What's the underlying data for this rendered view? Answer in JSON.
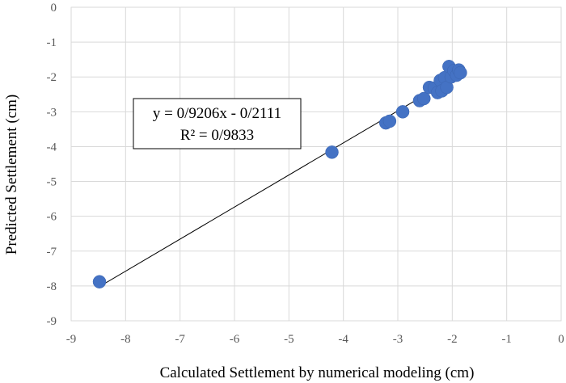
{
  "chart_data": {
    "type": "scatter",
    "title": "",
    "xlabel": "Calculated Settlement by numerical modeling (cm)",
    "ylabel": "Predicted Settlement (cm)",
    "xlim": [
      -9,
      0
    ],
    "ylim": [
      -9,
      0
    ],
    "x_ticks": [
      -9,
      -8,
      -7,
      -6,
      -5,
      -4,
      -3,
      -2,
      -1,
      0
    ],
    "y_ticks": [
      0,
      -1,
      -2,
      -3,
      -4,
      -5,
      -6,
      -7,
      -8,
      -9
    ],
    "x_tick_labels": [
      "-9",
      "-8",
      "-7",
      "-6",
      "-5",
      "-4",
      "-3",
      "-2",
      "-1",
      "0"
    ],
    "y_tick_labels": [
      "0",
      "-1",
      "-2",
      "-3",
      "-4",
      "-5",
      "-6",
      "-7",
      "-8",
      "-9"
    ],
    "grid": true,
    "legend": "none",
    "marker_color": "#4472c4",
    "points": [
      {
        "x": -8.48,
        "y": -7.88
      },
      {
        "x": -4.21,
        "y": -4.16
      },
      {
        "x": -3.22,
        "y": -3.32
      },
      {
        "x": -3.15,
        "y": -3.27
      },
      {
        "x": -2.91,
        "y": -3.0
      },
      {
        "x": -2.6,
        "y": -2.68
      },
      {
        "x": -2.52,
        "y": -2.62
      },
      {
        "x": -2.42,
        "y": -2.3
      },
      {
        "x": -2.33,
        "y": -2.32
      },
      {
        "x": -2.27,
        "y": -2.45
      },
      {
        "x": -2.22,
        "y": -2.1
      },
      {
        "x": -2.19,
        "y": -2.4
      },
      {
        "x": -2.14,
        "y": -2.02
      },
      {
        "x": -2.1,
        "y": -2.3
      },
      {
        "x": -2.06,
        "y": -1.7
      },
      {
        "x": -2.02,
        "y": -2.0
      },
      {
        "x": -1.97,
        "y": -1.82
      },
      {
        "x": -1.92,
        "y": -1.95
      },
      {
        "x": -1.88,
        "y": -1.8
      },
      {
        "x": -1.85,
        "y": -1.88
      }
    ],
    "trendline": {
      "slope": 0.9206,
      "intercept": -0.2111,
      "x_range": [
        -8.48,
        -1.84
      ],
      "color": "#000000"
    },
    "equation_lines": [
      "y = 0/9206x - 0/2111",
      "R² = 0/9833"
    ]
  }
}
